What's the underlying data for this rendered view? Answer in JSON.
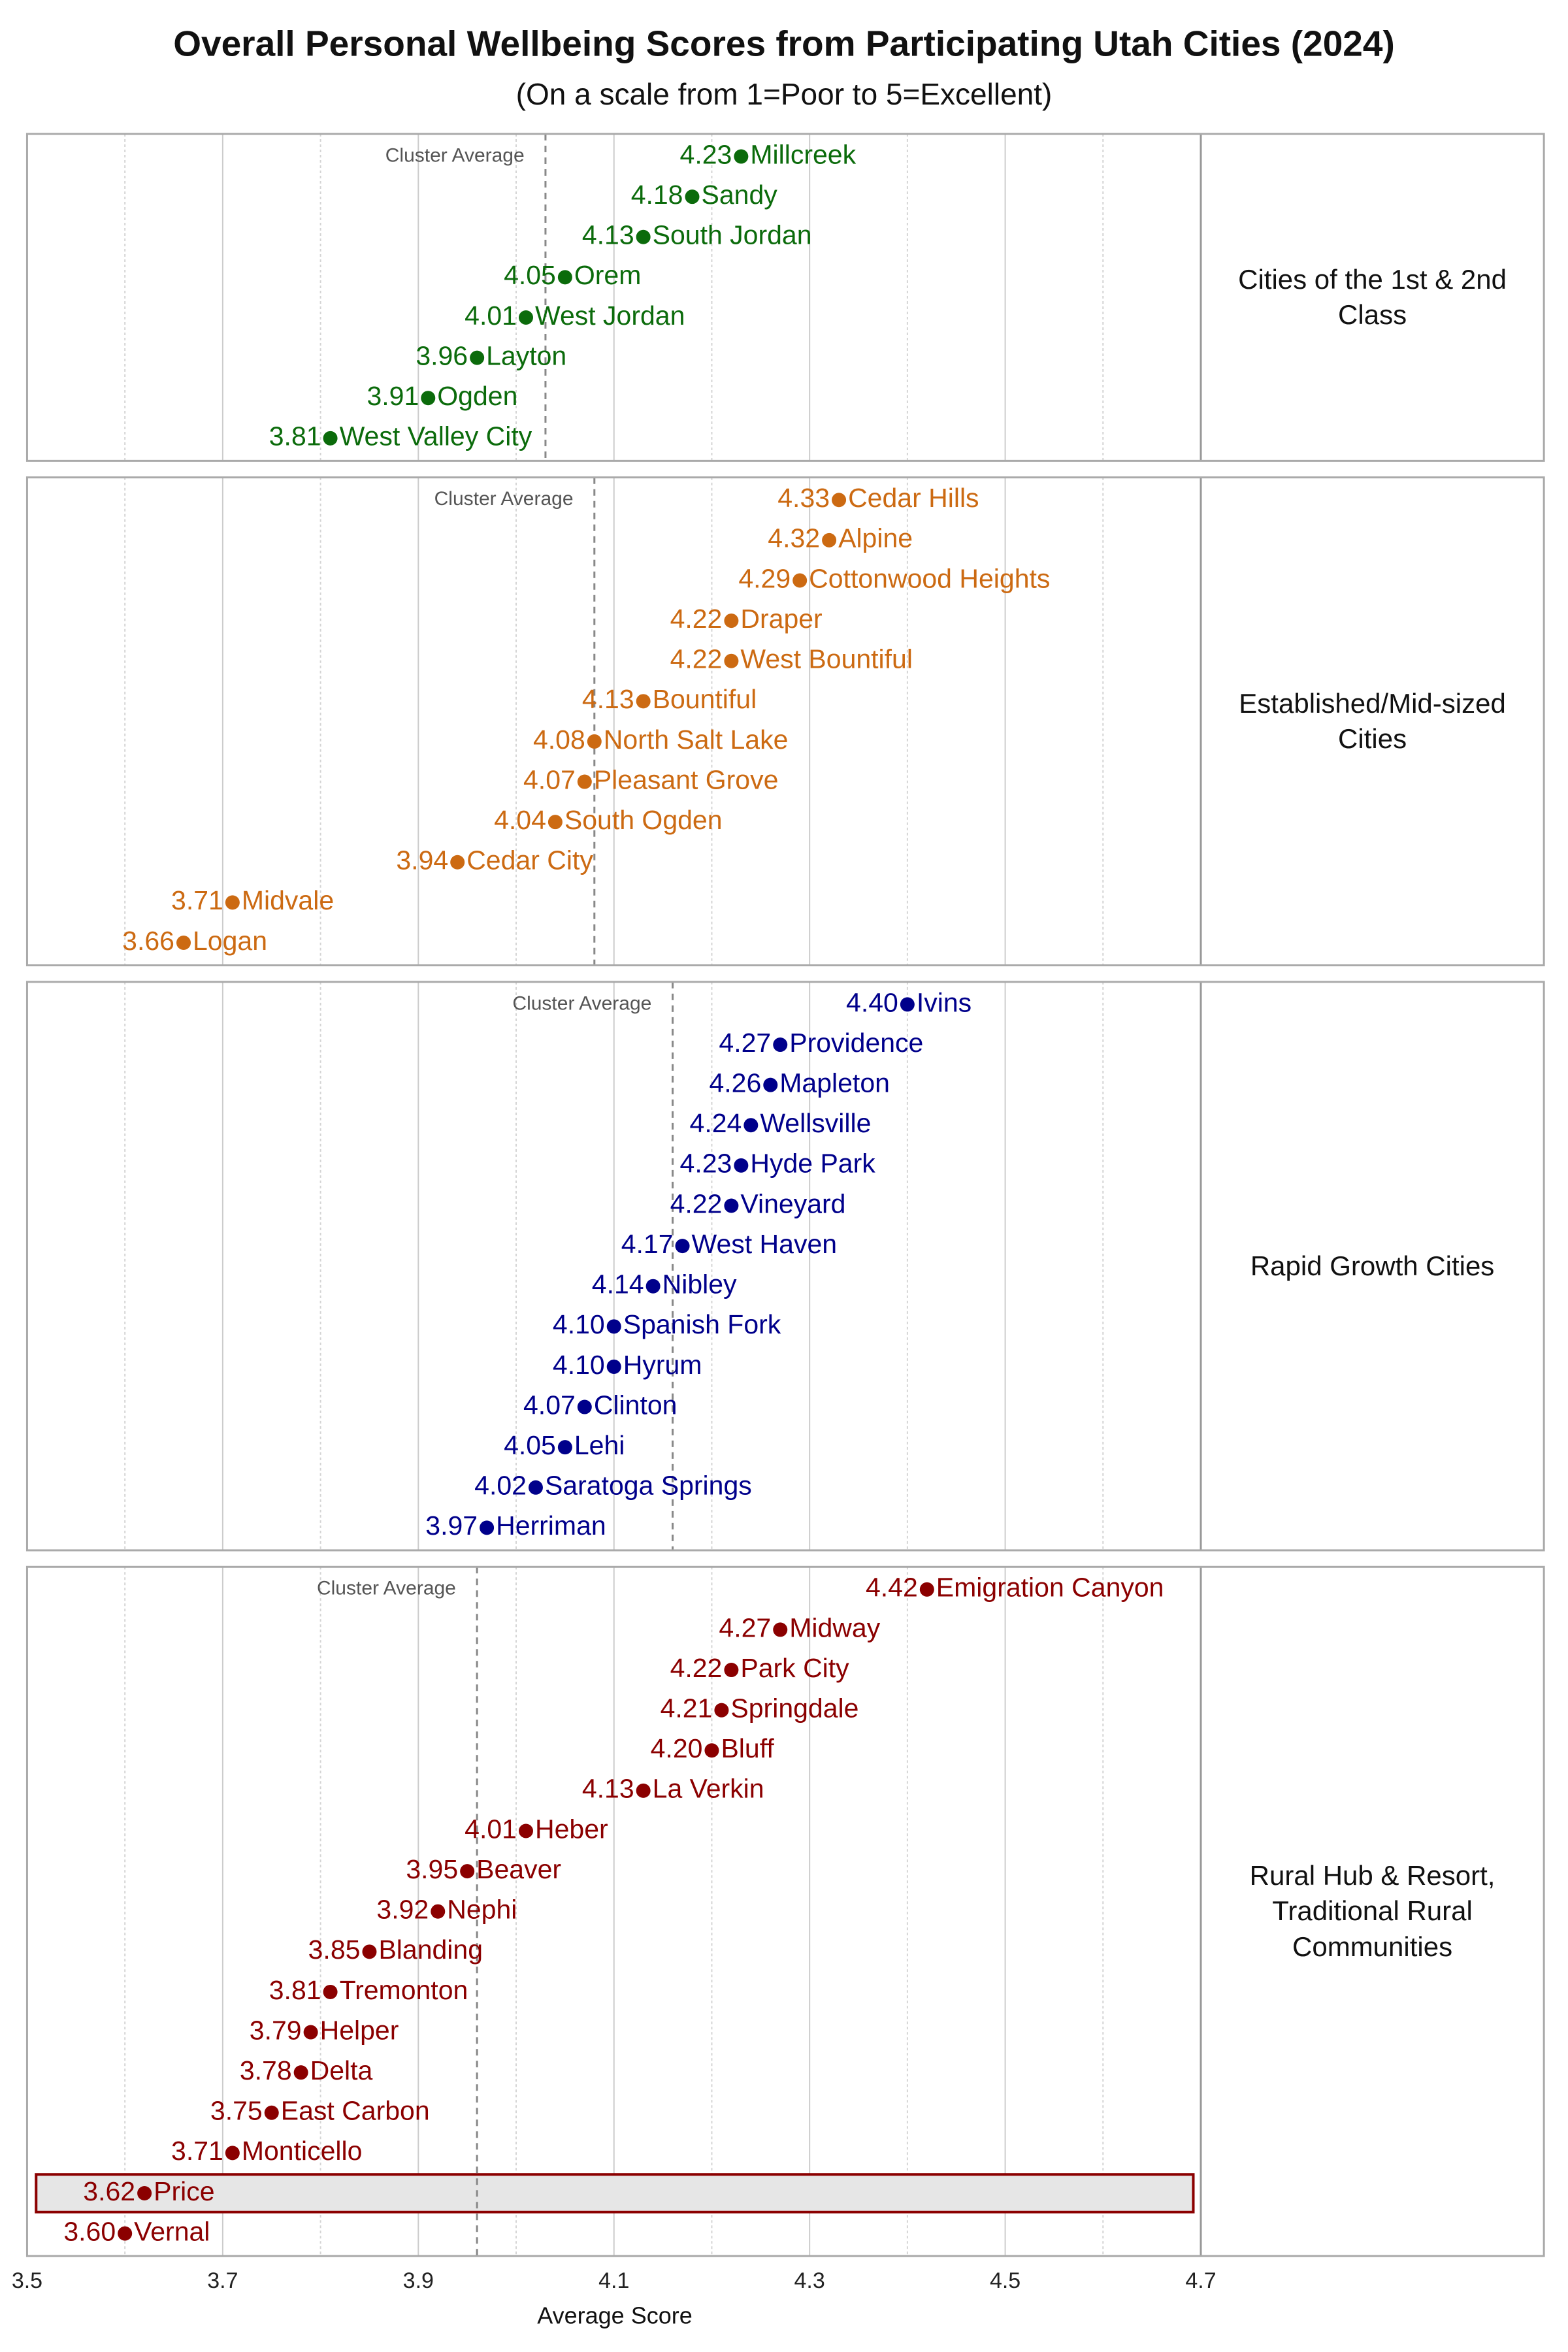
{
  "chart_data": {
    "type": "dot",
    "title": "Overall Personal Wellbeing Scores from Participating Utah Cities (2024)",
    "subtitle": "(On a scale from 1=Poor to 5=Excellent)",
    "x_label": "Average Score",
    "xlim": [
      3.5,
      4.7
    ],
    "xticks": [
      3.5,
      3.7,
      3.9,
      4.1,
      4.3,
      4.5,
      4.7
    ],
    "minor_xticks": [
      3.6,
      3.8,
      4.0,
      4.2,
      4.4,
      4.6
    ],
    "grid": true,
    "cluster_average_label": "Cluster Average",
    "panels": [
      {
        "name": "Cities of the 1st & 2nd Class",
        "color": "#0b6b0b",
        "cluster_average": 4.03,
        "categories": [
          "Millcreek",
          "Sandy",
          "South Jordan",
          "Orem",
          "West Jordan",
          "Layton",
          "Ogden",
          "West Valley City"
        ],
        "values": [
          4.23,
          4.18,
          4.13,
          4.05,
          4.01,
          3.96,
          3.91,
          3.81
        ],
        "value_labels": [
          "4.23",
          "4.18",
          "4.13",
          "4.05",
          "4.01",
          "3.96",
          "3.91",
          "3.81"
        ]
      },
      {
        "name": "Established/Mid-sized Cities",
        "color": "#cc6a12",
        "cluster_average": 4.08,
        "categories": [
          "Cedar Hills",
          "Alpine",
          "Cottonwood Heights",
          "Draper",
          "West Bountiful",
          "Bountiful",
          "North Salt Lake",
          "Pleasant Grove",
          "South Ogden",
          "Cedar City",
          "Midvale",
          "Logan"
        ],
        "values": [
          4.33,
          4.32,
          4.29,
          4.22,
          4.22,
          4.13,
          4.08,
          4.07,
          4.04,
          3.94,
          3.71,
          3.66
        ],
        "value_labels": [
          "4.33",
          "4.32",
          "4.29",
          "4.22",
          "4.22",
          "4.13",
          "4.08",
          "4.07",
          "4.04",
          "3.94",
          "3.71",
          "3.66"
        ]
      },
      {
        "name": "Rapid Growth Cities",
        "color": "#00008b",
        "cluster_average": 4.16,
        "categories": [
          "Ivins",
          "Providence",
          "Mapleton",
          "Wellsville",
          "Hyde Park",
          "Vineyard",
          "West Haven",
          "Nibley",
          "Spanish Fork",
          "Hyrum",
          "Clinton",
          "Lehi",
          "Saratoga Springs",
          "Herriman"
        ],
        "values": [
          4.4,
          4.27,
          4.26,
          4.24,
          4.23,
          4.22,
          4.17,
          4.14,
          4.1,
          4.1,
          4.07,
          4.05,
          4.02,
          3.97
        ],
        "value_labels": [
          "4.40",
          "4.27",
          "4.26",
          "4.24",
          "4.23",
          "4.22",
          "4.17",
          "4.14",
          "4.10",
          "4.10",
          "4.07",
          "4.05",
          "4.02",
          "3.97"
        ]
      },
      {
        "name": "Rural Hub & Resort, Traditional Rural Communities",
        "color": "#8b0000",
        "cluster_average": 3.96,
        "highlighted": 15,
        "categories": [
          "Emigration Canyon",
          "Midway",
          "Park City",
          "Springdale",
          "Bluff",
          "La Verkin",
          "Heber",
          "Beaver",
          "Nephi",
          "Blanding",
          "Tremonton",
          "Helper",
          "Delta",
          "East Carbon",
          "Monticello",
          "Price",
          "Vernal"
        ],
        "values": [
          4.42,
          4.27,
          4.22,
          4.21,
          4.2,
          4.13,
          4.01,
          3.95,
          3.92,
          3.85,
          3.81,
          3.79,
          3.78,
          3.75,
          3.71,
          3.62,
          3.6
        ],
        "value_labels": [
          "4.42",
          "4.27",
          "4.22",
          "4.21",
          "4.20",
          "4.13",
          "4.01",
          "3.95",
          "3.92",
          "3.85",
          "3.81",
          "3.79",
          "3.78",
          "3.75",
          "3.71",
          "3.62",
          "3.60"
        ]
      }
    ]
  }
}
